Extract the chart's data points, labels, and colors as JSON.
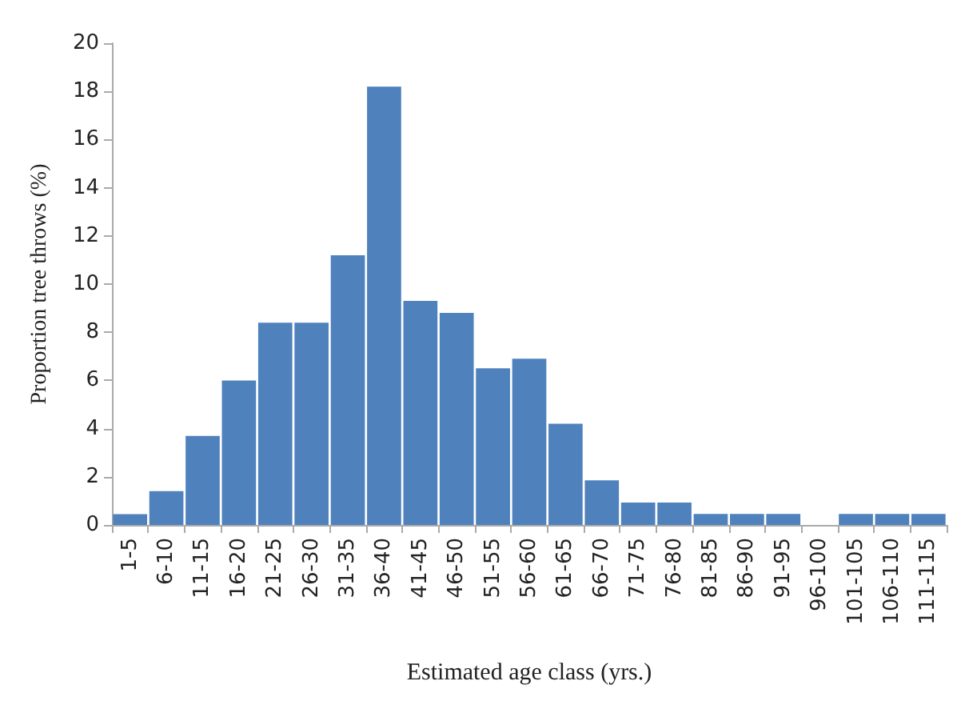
{
  "chart_data": {
    "type": "bar",
    "xlabel": "Estimated age class (yrs.)",
    "ylabel": "Proportion tree throws (%)",
    "categories": [
      "1-5",
      "6-10",
      "11-15",
      "16-20",
      "21-25",
      "26-30",
      "31-35",
      "36-40",
      "41-45",
      "46-50",
      "51-55",
      "56-60",
      "61-65",
      "66-70",
      "71-75",
      "76-80",
      "81-85",
      "86-90",
      "91-95",
      "96-100",
      "101-105",
      "106-110",
      "111-115"
    ],
    "values": [
      0.45,
      1.4,
      3.7,
      6.0,
      8.4,
      8.4,
      11.2,
      18.2,
      9.3,
      8.8,
      6.5,
      6.9,
      4.2,
      1.85,
      0.93,
      0.93,
      0.46,
      0.46,
      0.46,
      0,
      0.46,
      0.46,
      0.46
    ],
    "color": "#4f81bd",
    "ylim": [
      0,
      20
    ],
    "yticks": [
      0,
      2,
      4,
      6,
      8,
      10,
      12,
      14,
      16,
      18,
      20
    ],
    "grid": false
  }
}
